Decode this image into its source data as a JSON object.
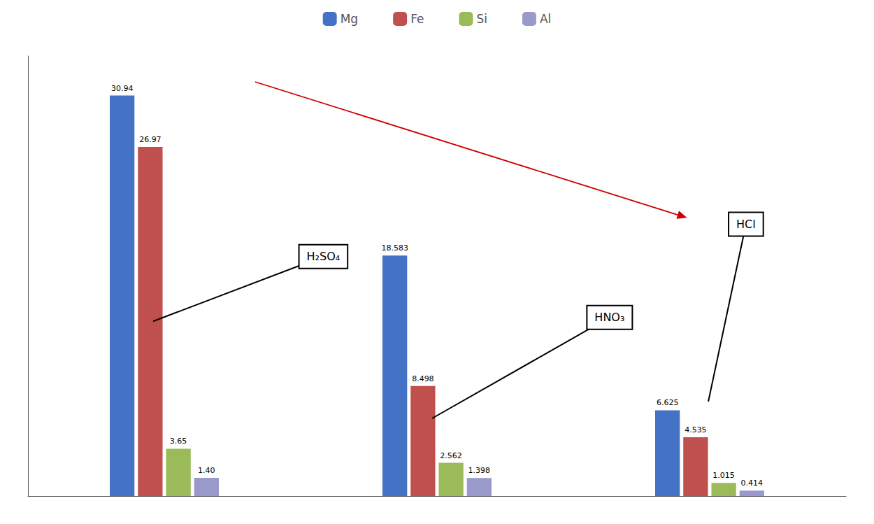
{
  "chart_data": {
    "type": "bar",
    "categories": [
      null,
      null,
      null
    ],
    "series": [
      {
        "name": "Mg",
        "color": "#4472C4",
        "values": [
          30.94,
          18.583,
          6.625
        ],
        "value_labels": [
          "30.94",
          "18.583",
          "6.625"
        ]
      },
      {
        "name": "Fe",
        "color": "#C0504D",
        "values": [
          26.97,
          8.498,
          4.535
        ],
        "value_labels": [
          "26.97",
          "8.498",
          "4.535"
        ]
      },
      {
        "name": "Si",
        "color": "#9BBB59",
        "values": [
          3.65,
          2.562,
          1.015
        ],
        "value_labels": [
          "3.65",
          "2.562",
          "1.015"
        ]
      },
      {
        "name": "Al",
        "color": "#9999CC",
        "values": [
          1.4,
          1.398,
          0.414
        ],
        "value_labels": [
          "1.40",
          "1.398",
          "0.414"
        ]
      }
    ],
    "annotations": [
      "H₂SO₄",
      "HNO₃",
      "HCl"
    ],
    "ylim": [
      0,
      34
    ],
    "grid": false,
    "legend": "top",
    "data_labels": true,
    "tick_labels": false
  }
}
